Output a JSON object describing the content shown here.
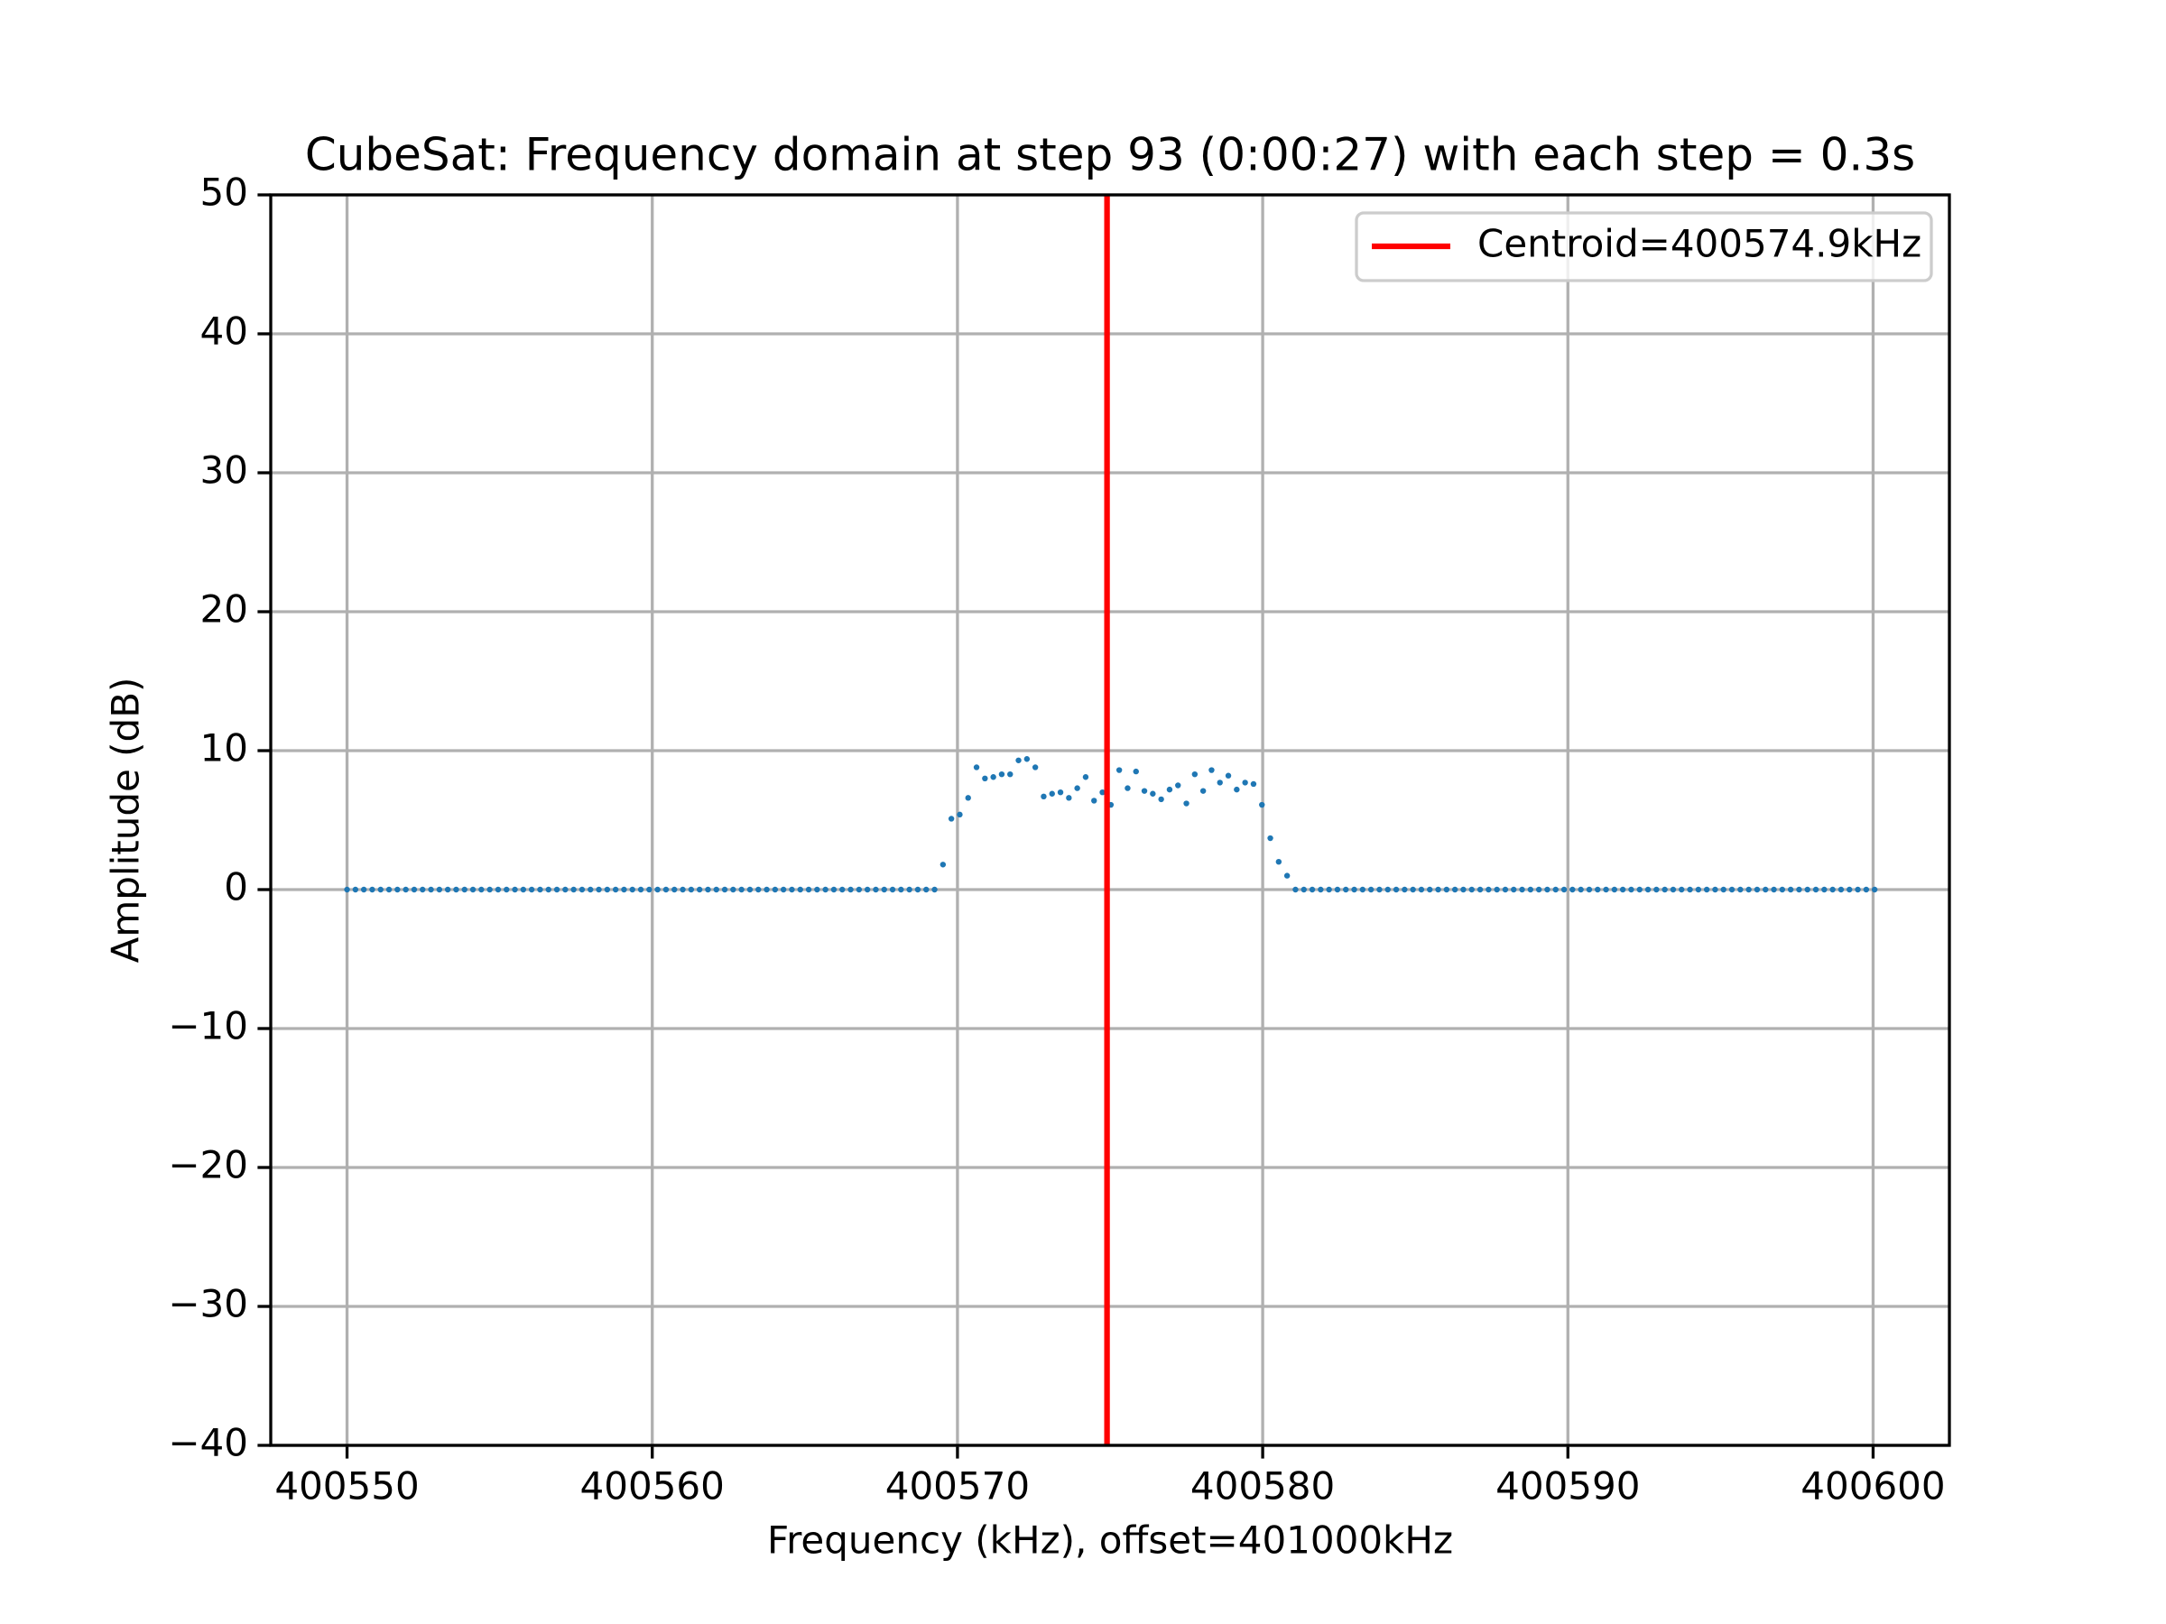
{
  "chart_data": {
    "type": "scatter",
    "title": "CubeSat: Frequency domain at step 93 (0:00:27) with each step = 0.3s",
    "xlabel": "Frequency (kHz), offset=401000kHz",
    "ylabel": "Amplitude (dB)",
    "color": "#1f77b4",
    "xlim": [
      400547.5,
      400602.5
    ],
    "xticks": [
      400550,
      400560,
      400570,
      400580,
      400590,
      400600
    ],
    "ylim": [
      -40,
      50
    ],
    "yticks": [
      {
        "value": -40,
        "label": "−40"
      },
      {
        "value": -30,
        "label": "−30"
      },
      {
        "value": -20,
        "label": "−20"
      },
      {
        "value": -10,
        "label": "−10"
      },
      0,
      10,
      20,
      30,
      40,
      50
    ],
    "grid": true,
    "legend": "upper right",
    "vlines": [
      {
        "name": "Centroid=400574.9kHz",
        "x": 400574.9,
        "color": "#ff0000"
      }
    ],
    "x": [
      400550,
      400550.275,
      400550.55,
      400550.825,
      400551.1,
      400551.375,
      400551.65,
      400551.925,
      400552.2,
      400552.475,
      400552.75,
      400553.025,
      400553.3,
      400553.575,
      400553.85,
      400554.125,
      400554.4,
      400554.675,
      400554.95,
      400555.225,
      400555.5,
      400555.775,
      400556.05,
      400556.325,
      400556.6,
      400556.875,
      400557.15,
      400557.425,
      400557.7,
      400557.975,
      400558.25,
      400558.525,
      400558.8,
      400559.075,
      400559.35,
      400559.625,
      400559.9,
      400560.175,
      400560.45,
      400560.725,
      400561,
      400561.275,
      400561.55,
      400561.825,
      400562.1,
      400562.375,
      400562.65,
      400562.925,
      400563.2,
      400563.475,
      400563.75,
      400564.025,
      400564.3,
      400564.575,
      400564.85,
      400565.125,
      400565.4,
      400565.675,
      400565.95,
      400566.225,
      400566.5,
      400566.775,
      400567.05,
      400567.325,
      400567.6,
      400567.875,
      400568.15,
      400568.425,
      400568.7,
      400568.975,
      400569.25,
      400569.525,
      400569.8,
      400570.075,
      400570.35,
      400570.625,
      400570.9,
      400571.175,
      400571.45,
      400571.725,
      400572,
      400572.275,
      400572.55,
      400572.825,
      400573.1,
      400573.375,
      400573.65,
      400573.925,
      400574.2,
      400574.475,
      400574.75,
      400575.025,
      400575.3,
      400575.575,
      400575.85,
      400576.125,
      400576.4,
      400576.675,
      400576.95,
      400577.225,
      400577.5,
      400577.775,
      400578.05,
      400578.325,
      400578.6,
      400578.875,
      400579.15,
      400579.425,
      400579.7,
      400579.975,
      400580.25,
      400580.525,
      400580.8,
      400581.075,
      400581.35,
      400581.625,
      400581.9,
      400582.175,
      400582.45,
      400582.725,
      400583,
      400583.275,
      400583.55,
      400583.825,
      400584.1,
      400584.375,
      400584.65,
      400584.925,
      400585.2,
      400585.475,
      400585.75,
      400586.025,
      400586.3,
      400586.575,
      400586.85,
      400587.125,
      400587.4,
      400587.675,
      400587.95,
      400588.225,
      400588.5,
      400588.775,
      400589.05,
      400589.325,
      400589.6,
      400589.875,
      400590.15,
      400590.425,
      400590.7,
      400590.975,
      400591.25,
      400591.525,
      400591.8,
      400592.075,
      400592.35,
      400592.625,
      400592.9,
      400593.175,
      400593.45,
      400593.725,
      400594,
      400594.275,
      400594.55,
      400594.825,
      400595.1,
      400595.375,
      400595.65,
      400595.925,
      400596.2,
      400596.475,
      400596.75,
      400597.025,
      400597.3,
      400597.575,
      400597.85,
      400598.125,
      400598.4,
      400598.675,
      400598.95,
      400599.225,
      400599.5,
      400599.775,
      400600.05
    ],
    "values": [
      0,
      0,
      0,
      0,
      0,
      0,
      0,
      0,
      0,
      0,
      0,
      0,
      0,
      0,
      0,
      0,
      0,
      0,
      0,
      0,
      0,
      0,
      0,
      0,
      0,
      0,
      0,
      0,
      0,
      0,
      0,
      0,
      0,
      0,
      0,
      0,
      0,
      0,
      0,
      0,
      0,
      0,
      0,
      0,
      0,
      0,
      0,
      0,
      0,
      0,
      0,
      0,
      0,
      0,
      0,
      0,
      0,
      0,
      0,
      0,
      0,
      0,
      0,
      0,
      0,
      0,
      0,
      0,
      0,
      0,
      0,
      1.8,
      5.1,
      5.4,
      6.6,
      8.8,
      8.0,
      8.1,
      8.3,
      8.3,
      9.3,
      9.4,
      8.8,
      6.7,
      6.9,
      7.0,
      6.6,
      7.3,
      8.1,
      6.4,
      7.0,
      6.1,
      8.6,
      7.3,
      8.5,
      7.1,
      6.9,
      6.5,
      7.2,
      7.5,
      6.2,
      8.3,
      7.1,
      8.6,
      7.7,
      8.2,
      7.2,
      7.7,
      7.6,
      6.1,
      3.7,
      2.0,
      1.0,
      0,
      0,
      0,
      0,
      0,
      0,
      0,
      0,
      0,
      0,
      0,
      0,
      0,
      0,
      0,
      0,
      0,
      0,
      0,
      0,
      0,
      0,
      0,
      0,
      0,
      0,
      0,
      0,
      0,
      0,
      0,
      0,
      0,
      0,
      0,
      0,
      0,
      0,
      0,
      0,
      0,
      0,
      0,
      0,
      0,
      0,
      0,
      0,
      0,
      0,
      0,
      0,
      0,
      0,
      0,
      0,
      0,
      0,
      0,
      0,
      0,
      0,
      0,
      0,
      0,
      0,
      0,
      0,
      0,
      0
    ]
  }
}
